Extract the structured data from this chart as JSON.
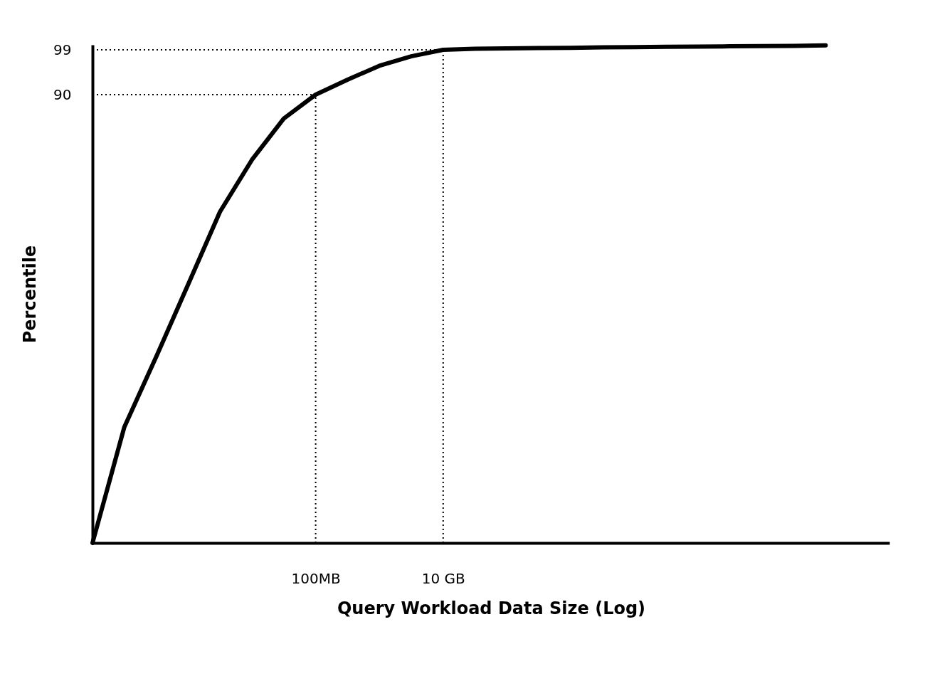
{
  "chart_data": {
    "type": "line",
    "xlabel": "Query Workload Data Size (Log)",
    "ylabel": "Percentile",
    "grid": false,
    "marker": "none",
    "line_style": "solid",
    "categories": [
      null,
      null,
      null,
      null,
      null,
      null,
      null,
      "100MB",
      null,
      null,
      null,
      "10 GB",
      null,
      null,
      null,
      null,
      null,
      null,
      null,
      null,
      null,
      null,
      null,
      null,
      null,
      null
    ],
    "series": [
      {
        "color": "#000000",
        "values": [
          0,
          23.3,
          37.4,
          51.9,
          66.5,
          76.9,
          85.2,
          90,
          93,
          95.8,
          97.7,
          99,
          99.2,
          99.3,
          99.35,
          99.4,
          99.5,
          99.55,
          99.6,
          99.65,
          99.7,
          99.75,
          99.8,
          99.9,
          null,
          null
        ]
      }
    ],
    "ylim": [
      0,
      100
    ],
    "yticks": [
      90,
      99
    ],
    "ref_lines": [
      {
        "axis": "y",
        "value": 90,
        "line_style": "dotted"
      },
      {
        "axis": "y",
        "value": 99,
        "line_style": "dotted"
      },
      {
        "axis": "x",
        "value": "100MB",
        "line_style": "dotted"
      },
      {
        "axis": "x",
        "value": "10 GB",
        "line_style": "dotted"
      }
    ]
  }
}
